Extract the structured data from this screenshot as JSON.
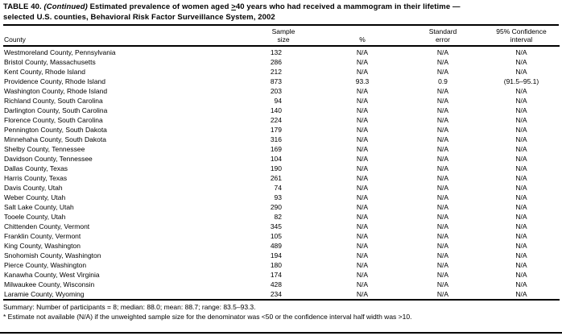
{
  "title": {
    "table_label": "TABLE 40.",
    "continued": "(Continued)",
    "line1_mid": "Estimated prevalence of women aged",
    "geq_symbol": ">",
    "line1_rest": "40 years who had received a mammogram in their lifetime —",
    "line2": "selected U.S. counties, Behavioral Risk Factor Surveillance System, 2002"
  },
  "table": {
    "columns": {
      "county": "County",
      "sample_line1": "Sample",
      "sample_line2": "size",
      "percent": "%",
      "se_line1": "Standard",
      "se_line2": "error",
      "ci_line1": "95% Confidence",
      "ci_line2": "interval"
    },
    "rows": [
      {
        "county": "Westmoreland County, Pennsylvania",
        "sample": "132",
        "percent": "N/A",
        "se": "N/A",
        "ci": "N/A"
      },
      {
        "county": "Bristol County, Massachusetts",
        "sample": "286",
        "percent": "N/A",
        "se": "N/A",
        "ci": "N/A"
      },
      {
        "county": "Kent County, Rhode Island",
        "sample": "212",
        "percent": "N/A",
        "se": "N/A",
        "ci": "N/A"
      },
      {
        "county": "Providence County, Rhode Island",
        "sample": "873",
        "percent": "93.3",
        "se": "0.9",
        "ci": "(91.5–95.1)"
      },
      {
        "county": "Washington County, Rhode Island",
        "sample": "203",
        "percent": "N/A",
        "se": "N/A",
        "ci": "N/A"
      },
      {
        "county": "Richland County, South Carolina",
        "sample": "94",
        "percent": "N/A",
        "se": "N/A",
        "ci": "N/A"
      },
      {
        "county": "Darlington County, South Carolina",
        "sample": "140",
        "percent": "N/A",
        "se": "N/A",
        "ci": "N/A"
      },
      {
        "county": "Florence County, South Carolina",
        "sample": "224",
        "percent": "N/A",
        "se": "N/A",
        "ci": "N/A"
      },
      {
        "county": "Pennington County, South Dakota",
        "sample": "179",
        "percent": "N/A",
        "se": "N/A",
        "ci": "N/A"
      },
      {
        "county": "Minnehaha County, South Dakota",
        "sample": "316",
        "percent": "N/A",
        "se": "N/A",
        "ci": "N/A"
      },
      {
        "county": "Shelby County, Tennessee",
        "sample": "169",
        "percent": "N/A",
        "se": "N/A",
        "ci": "N/A"
      },
      {
        "county": "Davidson County, Tennessee",
        "sample": "104",
        "percent": "N/A",
        "se": "N/A",
        "ci": "N/A"
      },
      {
        "county": "Dallas County, Texas",
        "sample": "190",
        "percent": "N/A",
        "se": "N/A",
        "ci": "N/A"
      },
      {
        "county": "Harris County, Texas",
        "sample": "261",
        "percent": "N/A",
        "se": "N/A",
        "ci": "N/A"
      },
      {
        "county": "Davis County, Utah",
        "sample": "74",
        "percent": "N/A",
        "se": "N/A",
        "ci": "N/A"
      },
      {
        "county": "Weber County, Utah",
        "sample": "93",
        "percent": "N/A",
        "se": "N/A",
        "ci": "N/A"
      },
      {
        "county": "Salt Lake County, Utah",
        "sample": "290",
        "percent": "N/A",
        "se": "N/A",
        "ci": "N/A"
      },
      {
        "county": "Tooele County, Utah",
        "sample": "82",
        "percent": "N/A",
        "se": "N/A",
        "ci": "N/A"
      },
      {
        "county": "Chittenden County, Vermont",
        "sample": "345",
        "percent": "N/A",
        "se": "N/A",
        "ci": "N/A"
      },
      {
        "county": "Franklin County, Vermont",
        "sample": "105",
        "percent": "N/A",
        "se": "N/A",
        "ci": "N/A"
      },
      {
        "county": "King County, Washington",
        "sample": "489",
        "percent": "N/A",
        "se": "N/A",
        "ci": "N/A"
      },
      {
        "county": "Snohomish County, Washington",
        "sample": "194",
        "percent": "N/A",
        "se": "N/A",
        "ci": "N/A"
      },
      {
        "county": "Pierce County, Washington",
        "sample": "180",
        "percent": "N/A",
        "se": "N/A",
        "ci": "N/A"
      },
      {
        "county": "Kanawha County, West Virginia",
        "sample": "174",
        "percent": "N/A",
        "se": "N/A",
        "ci": "N/A"
      },
      {
        "county": "Milwaukee County, Wisconsin",
        "sample": "428",
        "percent": "N/A",
        "se": "N/A",
        "ci": "N/A"
      },
      {
        "county": "Laramie County, Wyoming",
        "sample": "234",
        "percent": "N/A",
        "se": "N/A",
        "ci": "N/A"
      }
    ]
  },
  "summary": "Summary: Number of participants = 8; median: 88.0; mean: 88.7; range: 83.5–93.3.",
  "footnote": "* Estimate not available (N/A) if the unweighted sample size for the denominator was <50 or the confidence interval half width was >10.",
  "colors": {
    "text": "#000000",
    "background": "#ffffff",
    "rule": "#000000"
  }
}
